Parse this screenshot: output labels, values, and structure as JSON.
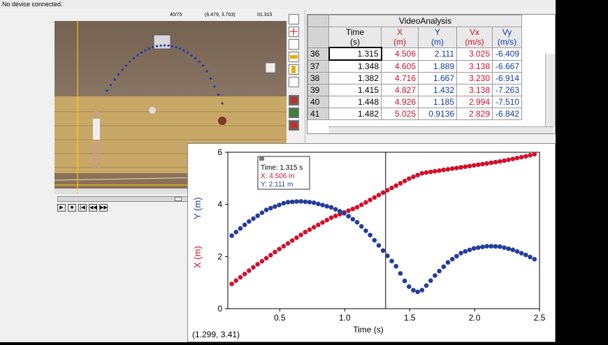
{
  "status_bar": {
    "text": "No device connected."
  },
  "video": {
    "frame": "40/75",
    "coords": "(6.479, 3.703)",
    "time": "01.315",
    "controls": [
      "play",
      "stop",
      "first-frame",
      "previous-frame",
      "next-frame"
    ]
  },
  "table": {
    "title": "VideoAnalysis",
    "columns": [
      {
        "name": "Time",
        "unit": "(s)",
        "color": "#000000"
      },
      {
        "name": "X",
        "unit": "(m)",
        "color": "#d2102a"
      },
      {
        "name": "Y",
        "unit": "(m)",
        "color": "#0c3ea8"
      },
      {
        "name": "Vx",
        "unit": "(m/s)",
        "color": "#d2102a"
      },
      {
        "name": "Vy",
        "unit": "(m/s)",
        "color": "#0c3ea8"
      }
    ],
    "rows": [
      [
        "36",
        "1.315",
        "4.506",
        "2.111",
        "3.025",
        "-6.409"
      ],
      [
        "37",
        "1.348",
        "4.605",
        "1.889",
        "3.138",
        "-6.667"
      ],
      [
        "38",
        "1.382",
        "4.716",
        "1.667",
        "3.230",
        "-6.914"
      ],
      [
        "39",
        "1.415",
        "4.827",
        "1.432",
        "3.138",
        "-7.263"
      ],
      [
        "40",
        "1.448",
        "4.926",
        "1.185",
        "2.994",
        "-7.510"
      ],
      [
        "41",
        "1.482",
        "5.025",
        "0.9136",
        "2.829",
        "-6.842"
      ]
    ]
  },
  "graph": {
    "ylabel_x": "X (m)",
    "ylabel_y": "Y (m)",
    "tooltip": {
      "time": "Time: 1.315 s",
      "x": "X: 4.506 m",
      "y": "Y: 2.111 m"
    },
    "cursor_readout": "(1.299, 3.41)",
    "colors": {
      "x": "#d2102a",
      "y": "#233d9a"
    }
  },
  "chart_data": {
    "type": "scatter",
    "title": "",
    "xlabel": "Time (s)",
    "ylabel": "",
    "xlim": [
      0.1,
      2.5
    ],
    "ylim": [
      0,
      6
    ],
    "xticks": [
      "0.5",
      "1.0",
      "1.5",
      "2.0",
      "2.5"
    ],
    "yticks": [
      "0",
      "2",
      "4",
      "6"
    ],
    "cursor_x": 1.315,
    "series": [
      {
        "name": "X (m)",
        "points": [
          [
            0.13,
            0.95
          ],
          [
            0.3,
            1.6
          ],
          [
            0.5,
            2.3
          ],
          [
            0.7,
            2.95
          ],
          [
            0.9,
            3.5
          ],
          [
            1.1,
            3.9
          ],
          [
            1.315,
            4.506
          ],
          [
            1.5,
            5.0
          ],
          [
            1.6,
            5.2
          ],
          [
            1.8,
            5.35
          ],
          [
            2.0,
            5.5
          ],
          [
            2.2,
            5.65
          ],
          [
            2.4,
            5.85
          ],
          [
            2.48,
            5.95
          ]
        ]
      },
      {
        "name": "Y (m)",
        "points": [
          [
            0.13,
            2.8
          ],
          [
            0.25,
            3.3
          ],
          [
            0.4,
            3.8
          ],
          [
            0.55,
            4.08
          ],
          [
            0.65,
            4.12
          ],
          [
            0.75,
            4.08
          ],
          [
            0.9,
            3.88
          ],
          [
            1.0,
            3.65
          ],
          [
            1.1,
            3.3
          ],
          [
            1.2,
            2.8
          ],
          [
            1.315,
            2.111
          ],
          [
            1.4,
            1.6
          ],
          [
            1.48,
            0.91
          ],
          [
            1.55,
            0.62
          ],
          [
            1.6,
            0.72
          ],
          [
            1.7,
            1.3
          ],
          [
            1.8,
            1.8
          ],
          [
            1.9,
            2.15
          ],
          [
            2.0,
            2.32
          ],
          [
            2.1,
            2.4
          ],
          [
            2.2,
            2.38
          ],
          [
            2.3,
            2.25
          ],
          [
            2.4,
            2.05
          ],
          [
            2.48,
            1.85
          ]
        ]
      }
    ]
  }
}
